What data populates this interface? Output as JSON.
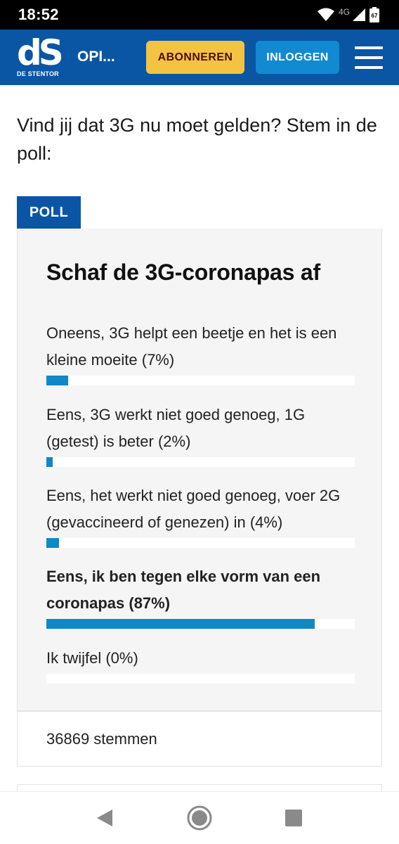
{
  "status_bar": {
    "time": "18:52",
    "network": "4G",
    "battery": "67",
    "icons": [
      "wifi-icon",
      "signal-icon",
      "battery-icon"
    ]
  },
  "header": {
    "logo_text": "dS",
    "logo_subtitle": "DE STENTOR",
    "section": "OPI...",
    "subscribe_label": "ABONNEREN",
    "login_label": "INLOGGEN",
    "menu_icon": "menu-icon",
    "colors": {
      "brand": "#0a56a4",
      "subscribe": "#f5c342",
      "login": "#1289d0"
    }
  },
  "article": {
    "intro": "Vind jij dat 3G nu moet gelden? Stem in de poll:"
  },
  "poll": {
    "tag": "POLL",
    "title": "Schaf de 3G-coronapas af",
    "bar_color": "#1088c6",
    "options": [
      {
        "label": "Oneens, 3G helpt een beetje en het is een kleine moeite (7%)",
        "percent": 7,
        "selected": false
      },
      {
        "label": "Eens, 3G werkt niet goed genoeg, 1G (getest) is beter (2%)",
        "percent": 2,
        "selected": false
      },
      {
        "label": "Eens, het werkt niet goed genoeg, voer 2G (gevaccineerd of genezen) in (4%)",
        "percent": 4,
        "selected": false
      },
      {
        "label": "Eens, ik ben tegen elke vorm van een coronapas (87%)",
        "percent": 87,
        "selected": true
      },
      {
        "label": "Ik twijfel (0%)",
        "percent": 0,
        "selected": false
      }
    ],
    "votes": "36869 stemmen"
  },
  "nav_bar": {
    "icons": [
      "back-icon",
      "home-icon",
      "recent-apps-icon"
    ]
  }
}
